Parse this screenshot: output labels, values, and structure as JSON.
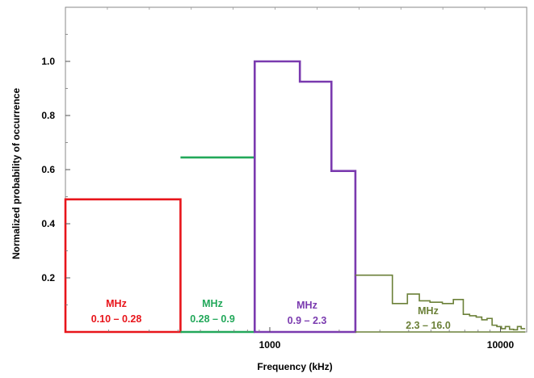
{
  "chart_data": {
    "type": "step",
    "xlabel": "Frequency (kHz)",
    "ylabel": "Normalized probability of occurrence",
    "x_scale": "log",
    "xlim": [
      130,
      13000
    ],
    "ylim": [
      0,
      1.2
    ],
    "x_ticks": [
      {
        "value": 1000,
        "label": "1000"
      },
      {
        "value": 10000,
        "label": "10000"
      }
    ],
    "y_ticks": [
      {
        "value": 0.2,
        "label": "0.2"
      },
      {
        "value": 0.4,
        "label": "0.4"
      },
      {
        "value": 0.6,
        "label": "0.6"
      },
      {
        "value": 0.8,
        "label": "0.8"
      },
      {
        "value": 1.0,
        "label": "1.0"
      }
    ],
    "grid": false,
    "series": [
      {
        "color": "#e8151b",
        "band": [
          "MHz",
          "0.10 – 0.28"
        ],
        "closed": true,
        "bins": [
          [
            130,
            410,
            0.49
          ]
        ]
      },
      {
        "color": "#22a85a",
        "band": [
          "MHz",
          "0.28 – 0.9"
        ],
        "closed": false,
        "bins": [
          [
            410,
            860,
            0.645
          ]
        ]
      },
      {
        "color": "#7a3aaf",
        "band": [
          "MHz",
          "0.9 – 2.3"
        ],
        "closed": true,
        "bins": [
          [
            860,
            1350,
            1.0
          ],
          [
            1350,
            1850,
            0.925
          ],
          [
            1850,
            2350,
            0.595
          ]
        ]
      },
      {
        "color": "#6b8038",
        "band": [
          "MHz",
          "2.3 – 16.0"
        ],
        "closed": false,
        "bins": [
          [
            2350,
            3400,
            0.21
          ],
          [
            3400,
            3950,
            0.105
          ],
          [
            3950,
            4450,
            0.14
          ],
          [
            4450,
            4950,
            0.115
          ],
          [
            4950,
            5600,
            0.11
          ],
          [
            5600,
            6250,
            0.105
          ],
          [
            6250,
            6900,
            0.12
          ],
          [
            6900,
            7350,
            0.065
          ],
          [
            7350,
            7850,
            0.06
          ],
          [
            7850,
            8300,
            0.055
          ],
          [
            8300,
            8750,
            0.045
          ],
          [
            8750,
            9200,
            0.05
          ],
          [
            9200,
            9650,
            0.025
          ],
          [
            9650,
            10100,
            0.02
          ],
          [
            10100,
            10500,
            0.012
          ],
          [
            10500,
            10950,
            0.02
          ],
          [
            10950,
            11400,
            0.01
          ],
          [
            11400,
            11850,
            0.008
          ],
          [
            11850,
            12300,
            0.02
          ],
          [
            12300,
            12800,
            0.012
          ]
        ]
      }
    ]
  }
}
